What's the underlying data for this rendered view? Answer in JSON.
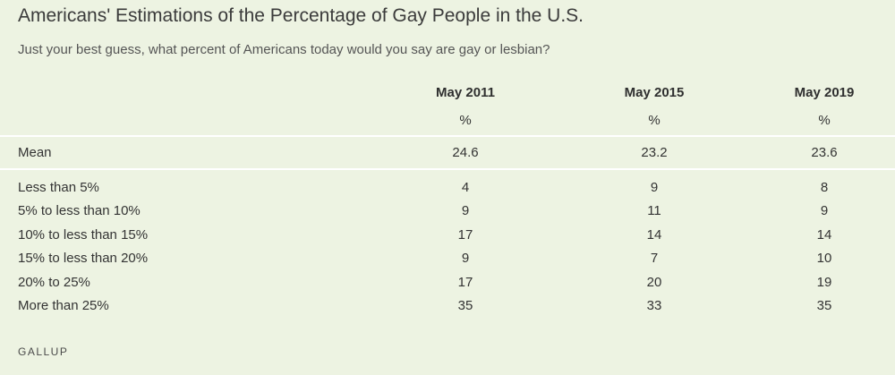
{
  "chart_data": {
    "type": "table",
    "title": "Americans' Estimations of the Percentage of Gay People in the U.S.",
    "subtitle": "Just your best guess, what percent of Americans today would you say are gay or lesbian?",
    "columns": [
      "May 2011",
      "May 2015",
      "May 2019"
    ],
    "units": [
      "%",
      "%",
      "%"
    ],
    "mean": {
      "label": "Mean",
      "values": [
        "24.6",
        "23.2",
        "23.6"
      ]
    },
    "rows": [
      {
        "label": "Less than 5%",
        "values": [
          "4",
          "9",
          "8"
        ]
      },
      {
        "label": "5% to less than 10%",
        "values": [
          "9",
          "11",
          "9"
        ]
      },
      {
        "label": "10% to less than 15%",
        "values": [
          "17",
          "14",
          "14"
        ]
      },
      {
        "label": "15% to less than 20%",
        "values": [
          "9",
          "7",
          "10"
        ]
      },
      {
        "label": "20% to 25%",
        "values": [
          "17",
          "20",
          "19"
        ]
      },
      {
        "label": "More than 25%",
        "values": [
          "35",
          "33",
          "35"
        ]
      }
    ],
    "source": "GALLUP"
  },
  "colors": {
    "background": "#edf3e2",
    "divider": "#ffffff"
  }
}
